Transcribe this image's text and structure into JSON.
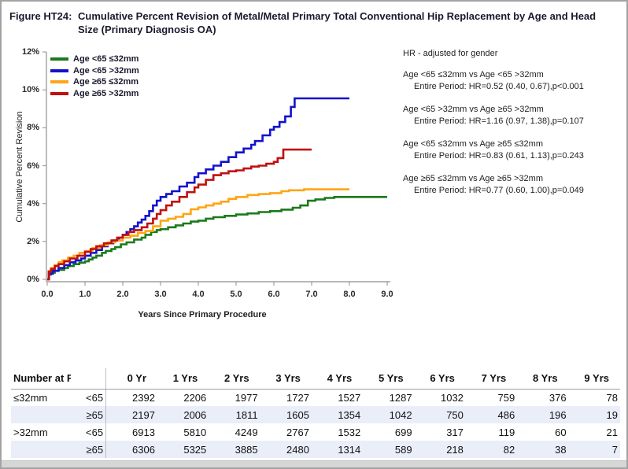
{
  "title": {
    "prefix": "Figure HT24:",
    "text": "Cumulative Percent Revision of Metal/Metal Primary Total Conventional Hip Replacement by Age and Head Size (Primary Diagnosis OA)"
  },
  "chart_data": {
    "type": "line",
    "step": true,
    "xlabel": "Years Since Primary Procedure",
    "ylabel": "Cumulative Percent Revision",
    "xlim": [
      0,
      9
    ],
    "ylim": [
      0,
      12
    ],
    "x_ticks": [
      "0.0",
      "1.0",
      "2.0",
      "3.0",
      "4.0",
      "5.0",
      "6.0",
      "7.0",
      "8.0",
      "9.0"
    ],
    "y_ticks": [
      "0%",
      "2%",
      "4%",
      "6%",
      "8%",
      "10%",
      "12%"
    ],
    "grid": false,
    "legend_position": "top-left-inside",
    "series": [
      {
        "id": "age-lt65-le32mm",
        "name": "Age <65 ≤32mm",
        "color": "#1a7a1a",
        "points": [
          [
            0,
            0
          ],
          [
            0.04,
            0.25
          ],
          [
            0.1,
            0.35
          ],
          [
            0.2,
            0.45
          ],
          [
            0.3,
            0.5
          ],
          [
            0.45,
            0.6
          ],
          [
            0.55,
            0.7
          ],
          [
            0.7,
            0.8
          ],
          [
            0.85,
            0.88
          ],
          [
            1.0,
            0.95
          ],
          [
            1.1,
            1.05
          ],
          [
            1.2,
            1.15
          ],
          [
            1.3,
            1.25
          ],
          [
            1.45,
            1.4
          ],
          [
            1.55,
            1.5
          ],
          [
            1.7,
            1.6
          ],
          [
            1.8,
            1.7
          ],
          [
            1.95,
            1.85
          ],
          [
            2.1,
            1.95
          ],
          [
            2.3,
            2.1
          ],
          [
            2.5,
            2.2
          ],
          [
            2.6,
            2.35
          ],
          [
            2.75,
            2.5
          ],
          [
            2.9,
            2.6
          ],
          [
            3.0,
            2.65
          ],
          [
            3.2,
            2.75
          ],
          [
            3.4,
            2.85
          ],
          [
            3.6,
            2.95
          ],
          [
            3.8,
            3.05
          ],
          [
            4.0,
            3.1
          ],
          [
            4.2,
            3.2
          ],
          [
            4.4,
            3.28
          ],
          [
            4.7,
            3.35
          ],
          [
            5.0,
            3.42
          ],
          [
            5.3,
            3.48
          ],
          [
            5.6,
            3.55
          ],
          [
            5.9,
            3.6
          ],
          [
            6.2,
            3.68
          ],
          [
            6.5,
            3.78
          ],
          [
            6.7,
            3.9
          ],
          [
            6.9,
            4.15
          ],
          [
            7.1,
            4.22
          ],
          [
            7.35,
            4.3
          ],
          [
            7.6,
            4.35
          ],
          [
            9.0,
            4.35
          ]
        ]
      },
      {
        "id": "age-lt65-gt32mm",
        "name": "Age <65 >32mm",
        "color": "#1212cc",
        "points": [
          [
            0,
            0
          ],
          [
            0.05,
            0.3
          ],
          [
            0.15,
            0.45
          ],
          [
            0.3,
            0.6
          ],
          [
            0.45,
            0.75
          ],
          [
            0.6,
            0.9
          ],
          [
            0.75,
            1.0
          ],
          [
            0.9,
            1.1
          ],
          [
            1.0,
            1.25
          ],
          [
            1.15,
            1.4
          ],
          [
            1.3,
            1.55
          ],
          [
            1.45,
            1.75
          ],
          [
            1.6,
            1.9
          ],
          [
            1.75,
            2.05
          ],
          [
            1.9,
            2.2
          ],
          [
            2.0,
            2.35
          ],
          [
            2.1,
            2.5
          ],
          [
            2.2,
            2.65
          ],
          [
            2.3,
            2.8
          ],
          [
            2.4,
            3.0
          ],
          [
            2.5,
            3.15
          ],
          [
            2.6,
            3.35
          ],
          [
            2.7,
            3.6
          ],
          [
            2.8,
            3.9
          ],
          [
            2.9,
            4.15
          ],
          [
            3.0,
            4.35
          ],
          [
            3.15,
            4.5
          ],
          [
            3.3,
            4.65
          ],
          [
            3.5,
            4.9
          ],
          [
            3.7,
            5.1
          ],
          [
            3.9,
            5.4
          ],
          [
            4.0,
            5.6
          ],
          [
            4.2,
            5.8
          ],
          [
            4.4,
            6.0
          ],
          [
            4.6,
            6.2
          ],
          [
            4.8,
            6.45
          ],
          [
            5.0,
            6.7
          ],
          [
            5.2,
            6.9
          ],
          [
            5.4,
            7.1
          ],
          [
            5.5,
            7.3
          ],
          [
            5.7,
            7.6
          ],
          [
            5.9,
            7.9
          ],
          [
            6.0,
            8.05
          ],
          [
            6.15,
            8.3
          ],
          [
            6.3,
            8.6
          ],
          [
            6.45,
            9.1
          ],
          [
            6.55,
            9.55
          ],
          [
            8.0,
            9.55
          ]
        ]
      },
      {
        "id": "age-ge65-le32mm",
        "name": "Age ≥65 ≤32mm",
        "color": "#ffa514",
        "points": [
          [
            0,
            0
          ],
          [
            0.04,
            0.45
          ],
          [
            0.1,
            0.6
          ],
          [
            0.2,
            0.75
          ],
          [
            0.3,
            0.9
          ],
          [
            0.4,
            1.0
          ],
          [
            0.55,
            1.15
          ],
          [
            0.7,
            1.25
          ],
          [
            0.85,
            1.4
          ],
          [
            1.0,
            1.5
          ],
          [
            1.2,
            1.65
          ],
          [
            1.4,
            1.8
          ],
          [
            1.6,
            1.95
          ],
          [
            1.8,
            2.05
          ],
          [
            2.0,
            2.2
          ],
          [
            2.2,
            2.3
          ],
          [
            2.4,
            2.45
          ],
          [
            2.6,
            2.55
          ],
          [
            2.8,
            2.8
          ],
          [
            3.0,
            3.1
          ],
          [
            3.2,
            3.2
          ],
          [
            3.4,
            3.3
          ],
          [
            3.6,
            3.45
          ],
          [
            3.8,
            3.7
          ],
          [
            4.0,
            3.8
          ],
          [
            4.2,
            3.9
          ],
          [
            4.4,
            4.0
          ],
          [
            4.6,
            4.1
          ],
          [
            4.8,
            4.25
          ],
          [
            5.0,
            4.35
          ],
          [
            5.3,
            4.45
          ],
          [
            5.6,
            4.5
          ],
          [
            5.9,
            4.55
          ],
          [
            6.2,
            4.65
          ],
          [
            6.4,
            4.7
          ],
          [
            6.8,
            4.75
          ],
          [
            8.0,
            4.75
          ]
        ]
      },
      {
        "id": "age-ge65-gt32mm",
        "name": "Age ≥65 >32mm",
        "color": "#c01010",
        "points": [
          [
            0,
            0
          ],
          [
            0.04,
            0.4
          ],
          [
            0.1,
            0.55
          ],
          [
            0.2,
            0.7
          ],
          [
            0.3,
            0.8
          ],
          [
            0.45,
            0.95
          ],
          [
            0.6,
            1.1
          ],
          [
            0.8,
            1.25
          ],
          [
            1.0,
            1.45
          ],
          [
            1.15,
            1.6
          ],
          [
            1.3,
            1.75
          ],
          [
            1.5,
            1.9
          ],
          [
            1.7,
            2.05
          ],
          [
            1.85,
            2.2
          ],
          [
            2.0,
            2.35
          ],
          [
            2.15,
            2.5
          ],
          [
            2.3,
            2.6
          ],
          [
            2.5,
            2.75
          ],
          [
            2.65,
            2.95
          ],
          [
            2.8,
            3.2
          ],
          [
            2.9,
            3.45
          ],
          [
            3.0,
            3.65
          ],
          [
            3.15,
            3.9
          ],
          [
            3.3,
            4.1
          ],
          [
            3.5,
            4.35
          ],
          [
            3.7,
            4.6
          ],
          [
            3.9,
            4.85
          ],
          [
            4.0,
            5.0
          ],
          [
            4.2,
            5.25
          ],
          [
            4.4,
            5.5
          ],
          [
            4.6,
            5.6
          ],
          [
            4.8,
            5.7
          ],
          [
            5.0,
            5.75
          ],
          [
            5.2,
            5.85
          ],
          [
            5.4,
            5.95
          ],
          [
            5.6,
            6.0
          ],
          [
            5.8,
            6.1
          ],
          [
            6.0,
            6.2
          ],
          [
            6.1,
            6.4
          ],
          [
            6.25,
            6.85
          ],
          [
            7.0,
            6.85
          ]
        ]
      }
    ]
  },
  "hr_panel": {
    "heading": "HR - adjusted for gender",
    "comparisons": [
      {
        "label": "Age <65 ≤32mm vs Age <65 >32mm",
        "result": "Entire Period: HR=0.52 (0.40, 0.67),p<0.001"
      },
      {
        "label": "Age <65 >32mm vs Age ≥65 >32mm",
        "result": "Entire Period: HR=1.16 (0.97, 1.38),p=0.107"
      },
      {
        "label": "Age <65 ≤32mm vs Age ≥65 ≤32mm",
        "result": "Entire Period: HR=0.83 (0.61, 1.13),p=0.243"
      },
      {
        "label": "Age ≥65 ≤32mm vs Age ≥65 >32mm",
        "result": "Entire Period: HR=0.77 (0.60, 1.00),p=0.049"
      }
    ]
  },
  "risk_table": {
    "title": "Number at Risk",
    "column_headers": [
      "0 Yr",
      "1 Yrs",
      "2 Yrs",
      "3 Yrs",
      "4 Yrs",
      "5 Yrs",
      "6 Yrs",
      "7 Yrs",
      "8 Yrs",
      "9 Yrs"
    ],
    "rows": [
      {
        "size": "≤32mm",
        "age": "<65",
        "values": [
          2392,
          2206,
          1977,
          1727,
          1527,
          1287,
          1032,
          759,
          376,
          78
        ]
      },
      {
        "size": "",
        "age": "≥65",
        "values": [
          2197,
          2006,
          1811,
          1605,
          1354,
          1042,
          750,
          486,
          196,
          19
        ]
      },
      {
        "size": ">32mm",
        "age": "<65",
        "values": [
          6913,
          5810,
          4249,
          2767,
          1532,
          699,
          317,
          119,
          60,
          21
        ]
      },
      {
        "size": "",
        "age": "≥65",
        "values": [
          6306,
          5325,
          3885,
          2480,
          1314,
          589,
          218,
          82,
          38,
          7
        ]
      }
    ]
  }
}
